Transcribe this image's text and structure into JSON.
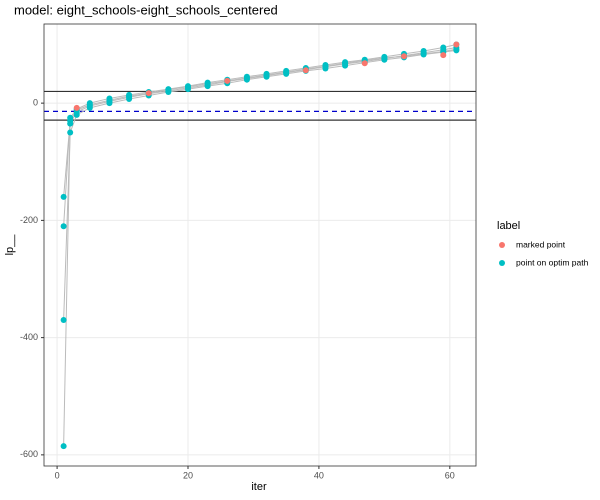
{
  "chart_data": {
    "type": "scatter",
    "title": "model: eight_schools-eight_schools_centered",
    "x_label": "iter",
    "y_label": "lp__",
    "legend_title": "label",
    "xlim": [
      -2,
      64
    ],
    "ylim": [
      -619,
      135
    ],
    "xticks": [
      0,
      20,
      40,
      60
    ],
    "yticks": [
      -600,
      -400,
      -200,
      0
    ],
    "grid": true,
    "hlines": [
      20,
      -29
    ],
    "hline_color": "#333333",
    "dashed_hline": -14,
    "dashed_hline_color": "#0000cc",
    "path_line_color": "#bbbbbb",
    "series": [
      {
        "name": "marked point",
        "color": "#F8766D",
        "x": [
          3,
          14,
          26,
          38,
          47,
          53,
          59,
          61
        ],
        "values": [
          -8,
          17,
          38,
          56,
          68,
          80,
          82,
          100
        ]
      },
      {
        "name": "point on optim path",
        "color": "#00BFC4",
        "paths": [
          {
            "x": [
              1,
              2,
              3,
              5,
              8,
              11,
              14,
              17,
              20,
              23,
              26,
              29,
              32,
              35,
              38,
              41,
              44,
              47,
              50,
              53,
              56,
              59,
              61
            ],
            "values": [
              -585,
              -35,
              -15,
              -5,
              3,
              10,
              16,
              21,
              26,
              31,
              37,
              42,
              47,
              52,
              57,
              62,
              67,
              71,
              76,
              81,
              86,
              91,
              95
            ]
          },
          {
            "x": [
              1,
              2,
              3,
              5,
              8,
              11,
              14,
              17,
              20,
              23,
              26,
              29,
              32,
              35,
              38,
              41,
              44,
              47,
              50,
              53,
              56,
              59,
              61
            ],
            "values": [
              -370,
              -50,
              -20,
              -8,
              0,
              7,
              13,
              19,
              24,
              29,
              34,
              40,
              45,
              50,
              55,
              59,
              64,
              69,
              74,
              78,
              83,
              87,
              90
            ]
          },
          {
            "x": [
              1,
              2,
              3,
              5,
              8,
              11,
              14,
              17,
              20,
              23,
              26,
              29,
              32,
              35,
              38,
              41,
              44,
              47,
              50,
              53,
              56,
              59,
              61
            ],
            "values": [
              -210,
              -25,
              -10,
              0,
              8,
              14,
              19,
              24,
              29,
              35,
              40,
              45,
              50,
              55,
              60,
              65,
              70,
              74,
              79,
              84,
              89,
              95,
              100
            ]
          },
          {
            "x": [
              1,
              2,
              3,
              5,
              8,
              11,
              14,
              17,
              20,
              23,
              26,
              29,
              32,
              35,
              38,
              41,
              44,
              47,
              50,
              53,
              56,
              59,
              61
            ],
            "values": [
              -160,
              -30,
              -12,
              -3,
              5,
              12,
              17,
              23,
              28,
              33,
              38,
              43,
              48,
              53,
              58,
              63,
              68,
              73,
              77,
              80,
              84,
              88,
              92
            ]
          }
        ]
      }
    ]
  }
}
